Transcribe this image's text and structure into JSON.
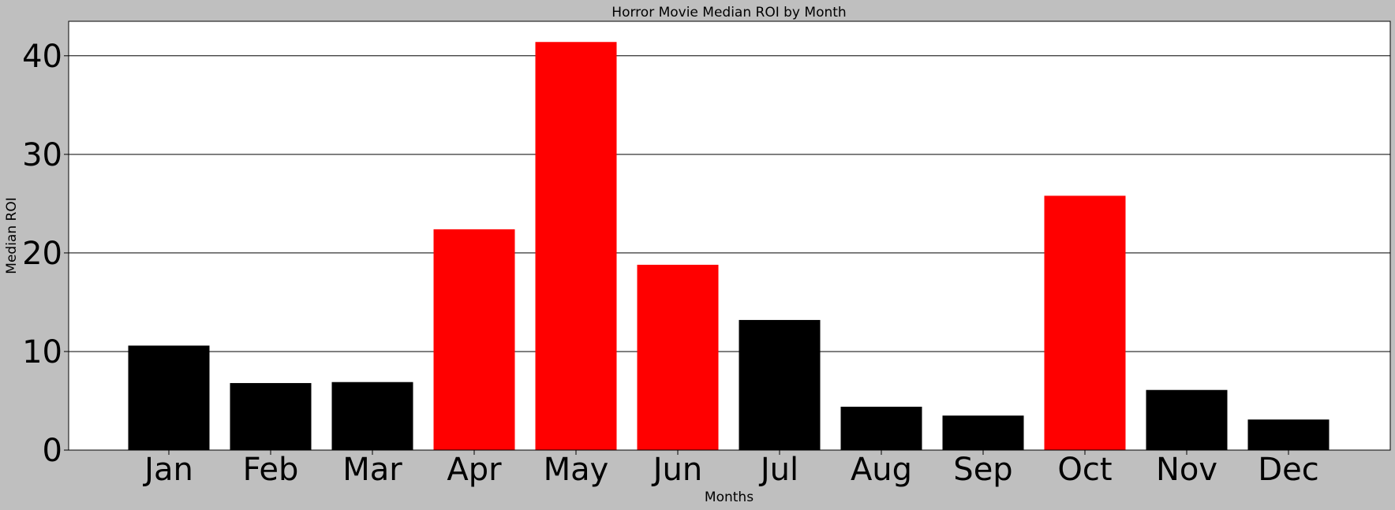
{
  "chart_data": {
    "type": "bar",
    "title": "Horror Movie Median ROI by Month",
    "xlabel": "Months",
    "ylabel": "Median ROI",
    "categories": [
      "Jan",
      "Feb",
      "Mar",
      "Apr",
      "May",
      "Jun",
      "Jul",
      "Aug",
      "Sep",
      "Oct",
      "Nov",
      "Dec"
    ],
    "values": [
      10.6,
      6.8,
      6.9,
      22.4,
      41.4,
      18.8,
      13.2,
      4.4,
      3.5,
      25.8,
      6.1,
      3.1
    ],
    "highlight": [
      false,
      false,
      false,
      true,
      true,
      true,
      false,
      false,
      false,
      true,
      false,
      false
    ],
    "ylim": [
      0,
      43.5
    ],
    "yticks": [
      0,
      10,
      20,
      30,
      40
    ],
    "grid": "horizontal",
    "colors": {
      "bar": "#000000",
      "highlight": "#ff0000",
      "figure_bg": "#bfbfbf",
      "plot_bg": "#ffffff"
    }
  }
}
